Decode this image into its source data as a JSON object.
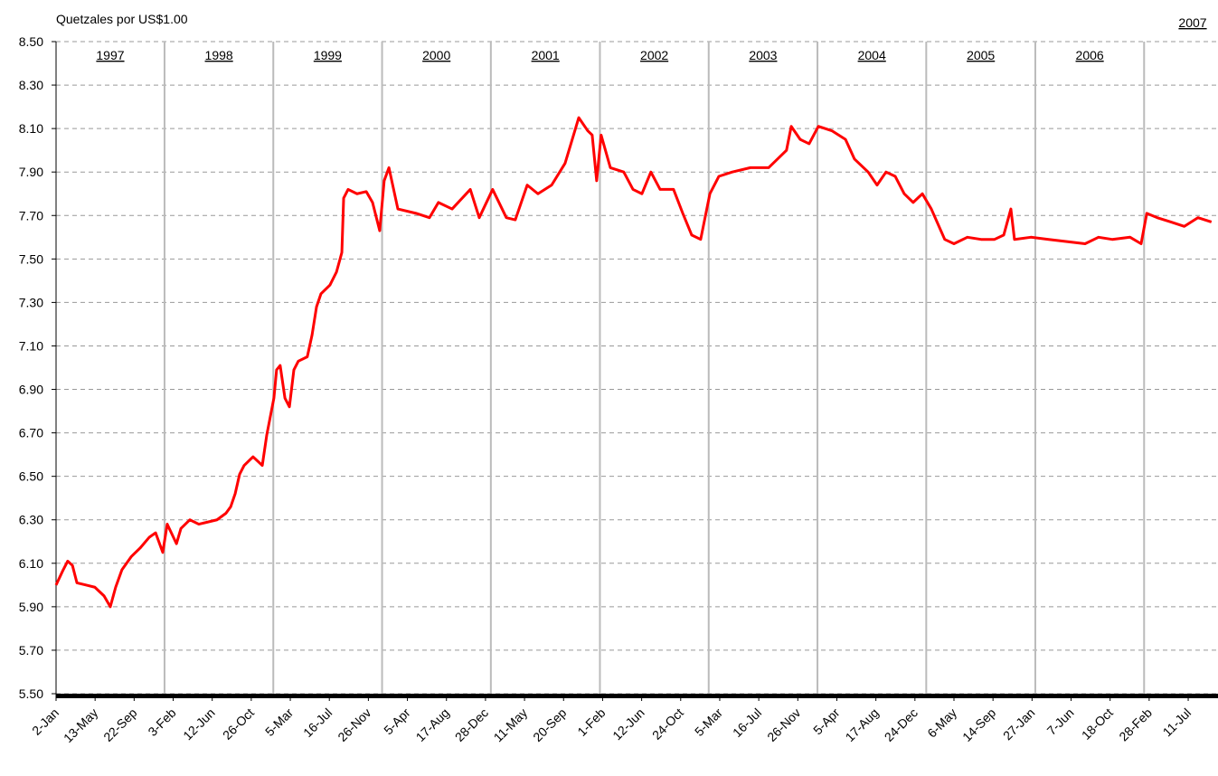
{
  "chart_data": {
    "type": "line",
    "y_axis_title": "Quetzales por US$1.00",
    "ylim": [
      5.5,
      8.5
    ],
    "yticks": [
      {
        "value": 5.5,
        "label": "5.50"
      },
      {
        "value": 5.7,
        "label": "5.70"
      },
      {
        "value": 5.9,
        "label": "5.90"
      },
      {
        "value": 6.1,
        "label": "6.10"
      },
      {
        "value": 6.3,
        "label": "6.30"
      },
      {
        "value": 6.5,
        "label": "6.50"
      },
      {
        "value": 6.7,
        "label": "6.70"
      },
      {
        "value": 6.9,
        "label": "6.90"
      },
      {
        "value": 7.1,
        "label": "7.10"
      },
      {
        "value": 7.3,
        "label": "7.30"
      },
      {
        "value": 7.5,
        "label": "7.50"
      },
      {
        "value": 7.7,
        "label": "7.70"
      },
      {
        "value": 7.9,
        "label": "7.90"
      },
      {
        "value": 8.1,
        "label": "8.10"
      },
      {
        "value": 8.3,
        "label": "8.30"
      },
      {
        "value": 8.5,
        "label": "8.50"
      }
    ],
    "xlim": [
      0,
      3899
    ],
    "xticks": [
      {
        "value": 0,
        "label": "2-Jan"
      },
      {
        "value": 131,
        "label": "13-May"
      },
      {
        "value": 262,
        "label": "22-Sep"
      },
      {
        "value": 393,
        "label": "3-Feb"
      },
      {
        "value": 524,
        "label": "12-Jun"
      },
      {
        "value": 655,
        "label": "26-Oct"
      },
      {
        "value": 786,
        "label": "5-Mar"
      },
      {
        "value": 917,
        "label": "16-Jul"
      },
      {
        "value": 1048,
        "label": "26-Nov"
      },
      {
        "value": 1179,
        "label": "5-Apr"
      },
      {
        "value": 1310,
        "label": "17-Aug"
      },
      {
        "value": 1441,
        "label": "28-Dec"
      },
      {
        "value": 1572,
        "label": "11-May"
      },
      {
        "value": 1703,
        "label": "20-Sep"
      },
      {
        "value": 1834,
        "label": "1-Feb"
      },
      {
        "value": 1965,
        "label": "12-Jun"
      },
      {
        "value": 2096,
        "label": "24-Oct"
      },
      {
        "value": 2227,
        "label": "5-Mar"
      },
      {
        "value": 2358,
        "label": "16-Jul"
      },
      {
        "value": 2489,
        "label": "26-Nov"
      },
      {
        "value": 2620,
        "label": "5-Apr"
      },
      {
        "value": 2751,
        "label": "17-Aug"
      },
      {
        "value": 2882,
        "label": "24-Dec"
      },
      {
        "value": 3013,
        "label": "6-May"
      },
      {
        "value": 3144,
        "label": "14-Sep"
      },
      {
        "value": 3275,
        "label": "27-Jan"
      },
      {
        "value": 3406,
        "label": "7-Jun"
      },
      {
        "value": 3537,
        "label": "18-Oct"
      },
      {
        "value": 3668,
        "label": "28-Feb"
      },
      {
        "value": 3799,
        "label": "11-Jul"
      }
    ],
    "year_separators": [
      364,
      729,
      1094,
      1459,
      1825,
      2190,
      2555,
      2920,
      3286,
      3651
    ],
    "year_labels": [
      "1997",
      "1998",
      "1999",
      "2000",
      "2001",
      "2002",
      "2003",
      "2004",
      "2005",
      "2006",
      "2007"
    ],
    "grid": true,
    "series": [
      {
        "color": "#ff0000",
        "x": [
          0,
          24,
          39,
          55,
          70,
          100,
          130,
          161,
          182,
          200,
          221,
          252,
          282,
          313,
          334,
          358,
          373,
          404,
          419,
          449,
          479,
          510,
          540,
          570,
          586,
          601,
          616,
          631,
          661,
          692,
          707,
          731,
          740,
          752,
          768,
          783,
          798,
          813,
          843,
          859,
          874,
          889,
          919,
          941,
          959,
          965,
          980,
          1010,
          1041,
          1062,
          1086,
          1101,
          1117,
          1147,
          1208,
          1253,
          1283,
          1329,
          1390,
          1420,
          1465,
          1511,
          1541,
          1581,
          1617,
          1663,
          1708,
          1754,
          1784,
          1799,
          1814,
          1829,
          1860,
          1905,
          1936,
          1966,
          1996,
          2027,
          2072,
          2103,
          2133,
          2163,
          2194,
          2224,
          2269,
          2330,
          2391,
          2451,
          2467,
          2497,
          2527,
          2558,
          2603,
          2649,
          2679,
          2725,
          2755,
          2785,
          2816,
          2846,
          2876,
          2907,
          2937,
          2982,
          3013,
          3058,
          3104,
          3149,
          3180,
          3204,
          3216,
          3271,
          3331,
          3392,
          3453,
          3498,
          3544,
          3604,
          3641,
          3660,
          3695,
          3741,
          3786,
          3832,
          3877
        ],
        "values": [
          6.0,
          6.07,
          6.11,
          6.09,
          6.01,
          6.0,
          5.99,
          5.95,
          5.9,
          5.99,
          6.07,
          6.13,
          6.17,
          6.22,
          6.24,
          6.15,
          6.28,
          6.19,
          6.26,
          6.3,
          6.28,
          6.29,
          6.3,
          6.33,
          6.36,
          6.42,
          6.51,
          6.55,
          6.59,
          6.55,
          6.69,
          6.86,
          6.99,
          7.01,
          6.86,
          6.82,
          6.99,
          7.03,
          7.05,
          7.15,
          7.28,
          7.34,
          7.38,
          7.44,
          7.53,
          7.78,
          7.82,
          7.8,
          7.81,
          7.76,
          7.63,
          7.86,
          7.92,
          7.73,
          7.71,
          7.69,
          7.76,
          7.73,
          7.82,
          7.69,
          7.82,
          7.69,
          7.68,
          7.84,
          7.8,
          7.84,
          7.94,
          8.15,
          8.09,
          8.07,
          7.86,
          8.07,
          7.92,
          7.9,
          7.82,
          7.8,
          7.9,
          7.82,
          7.82,
          7.71,
          7.61,
          7.59,
          7.8,
          7.88,
          7.9,
          7.92,
          7.92,
          8.0,
          8.11,
          8.05,
          8.03,
          8.11,
          8.09,
          8.05,
          7.96,
          7.9,
          7.84,
          7.9,
          7.88,
          7.8,
          7.76,
          7.8,
          7.73,
          7.59,
          7.57,
          7.6,
          7.59,
          7.59,
          7.61,
          7.73,
          7.59,
          7.6,
          7.59,
          7.58,
          7.57,
          7.6,
          7.59,
          7.6,
          7.57,
          7.71,
          7.69,
          7.67,
          7.65,
          7.69,
          7.67
        ]
      }
    ]
  }
}
